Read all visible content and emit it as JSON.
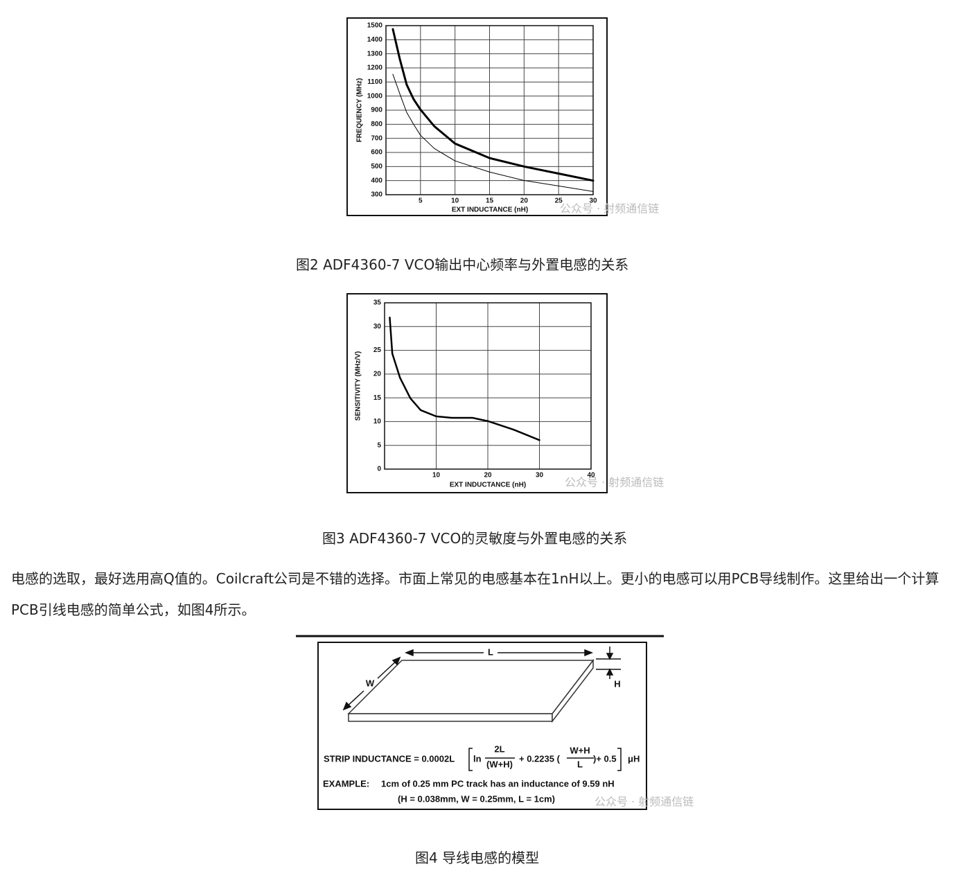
{
  "chart_data": [
    {
      "type": "line",
      "x_label": "EXT INDUCTANCE (nH)",
      "y_label": "FREQUENCY (MHz)",
      "x": [
        1,
        2,
        3,
        4,
        5,
        7,
        10,
        15,
        20,
        25,
        30
      ],
      "series": [
        {
          "color": "#000000",
          "linewidth": 3,
          "values": [
            1475,
            1264,
            1081,
            978,
            904,
            786,
            663,
            560,
            500,
            450,
            400
          ]
        },
        {
          "color": "#000000",
          "linewidth": 1,
          "values": [
            1155,
            1017,
            884,
            800,
            722,
            628,
            540,
            461,
            401,
            362,
            323
          ]
        }
      ],
      "xlim": [
        0,
        30
      ],
      "xticks": [
        5,
        10,
        15,
        20,
        25,
        30
      ],
      "ylim": [
        300,
        1500
      ],
      "yticks": [
        300,
        400,
        500,
        600,
        700,
        800,
        900,
        1000,
        1100,
        1200,
        1300,
        1400,
        1500
      ],
      "grid": true
    },
    {
      "type": "line",
      "x_label": "EXT INDUCTANCE (nH)",
      "y_label": "SENSITIVITY (MHz/V)",
      "x": [
        1,
        1.5,
        3,
        5,
        7,
        10,
        13,
        17,
        20,
        25,
        30
      ],
      "series": [
        {
          "color": "#000000",
          "linewidth": 2.5,
          "values": [
            31.9,
            24.3,
            19.2,
            14.9,
            12.4,
            11.1,
            10.8,
            10.8,
            10.1,
            8.3,
            6.1
          ]
        }
      ],
      "xlim": [
        0,
        40
      ],
      "xticks": [
        10,
        20,
        30,
        40
      ],
      "ylim": [
        0,
        35
      ],
      "yticks": [
        0,
        5,
        10,
        15,
        20,
        25,
        30,
        35
      ],
      "grid": true
    }
  ],
  "captions": [
    "图2 ADF4360-7 VCO输出中心频率与外置电感的关系",
    "图3 ADF4360-7 VCO的灵敏度与外置电感的关系",
    "图4 导线电感的模型"
  ],
  "paragraph": "电感的选取，最好选用高Q值的。Coilcraft公司是不错的选择。市面上常见的电感基本在1nH以上。更小的电感可以用PCB导线制作。这里给出一个计算PCB引线电感的简单公式，如图4所示。",
  "figure4": {
    "labels": {
      "length": "L",
      "width": "W",
      "height": "H"
    },
    "formula": {
      "lhs": "STRIP INDUCTANCE = 0.0002L",
      "ln": "ln",
      "frac1_num": "2L",
      "frac1_den": "(W+H)",
      "term2": "+ 0.2235 (",
      "frac2_num": "W+H",
      "frac2_den": "L",
      "term3": ")+ 0.5",
      "unit": "μH"
    },
    "example": {
      "label": "EXAMPLE:",
      "text": "1cm of 0.25 mm PC track has an inductance of 9.59 nH",
      "params": "(H = 0.038mm, W = 0.25mm, L = 1cm)"
    }
  },
  "watermark": "公众号 · 射频通信链"
}
